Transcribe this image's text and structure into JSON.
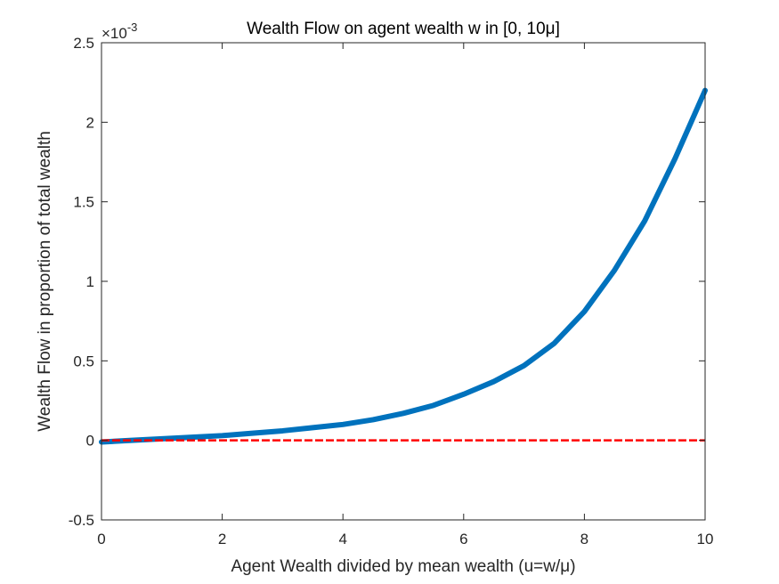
{
  "chart_data": {
    "type": "line",
    "title": "Wealth Flow on agent wealth w in [0, 10μ]",
    "xlabel": "Agent Wealth divided by mean wealth (u=w/μ)",
    "ylabel": "Wealth Flow in proportion of total wealth",
    "y_multiplier": "×10",
    "y_multiplier_exponent": "-3",
    "xlim": [
      0,
      10
    ],
    "ylim": [
      -0.5,
      2.5
    ],
    "y_scale_note_units": "x 1e-3",
    "xticks": [
      "0",
      "2",
      "4",
      "6",
      "8",
      "10"
    ],
    "yticks": [
      "-0.5",
      "0",
      "0.5",
      "1",
      "1.5",
      "2",
      "2.5"
    ],
    "xtick_values": [
      0,
      2,
      4,
      6,
      8,
      10
    ],
    "ytick_values": [
      -0.5,
      0,
      0.5,
      1,
      1.5,
      2,
      2.5
    ],
    "grid": false,
    "series": [
      {
        "color": "#0072BD",
        "style": "solid",
        "x": [
          0,
          0.5,
          1,
          1.5,
          2,
          2.5,
          3,
          3.5,
          4,
          4.5,
          5,
          5.5,
          6,
          6.5,
          7,
          7.5,
          8,
          8.5,
          9,
          9.5,
          10
        ],
        "y": [
          -0.01,
          0.0,
          0.01,
          0.02,
          0.03,
          0.045,
          0.06,
          0.08,
          0.1,
          0.13,
          0.17,
          0.22,
          0.29,
          0.37,
          0.47,
          0.61,
          0.81,
          1.07,
          1.38,
          1.77,
          2.2
        ]
      },
      {
        "color": "#FF0000",
        "style": "dashed",
        "x": [
          0,
          10
        ],
        "y": [
          0,
          0
        ]
      }
    ]
  }
}
